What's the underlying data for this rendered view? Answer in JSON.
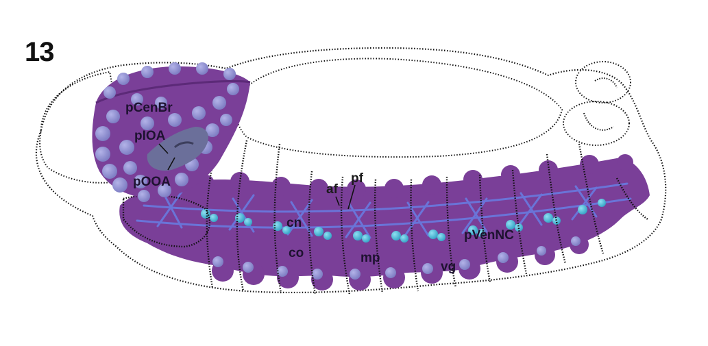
{
  "figure": {
    "number": "13"
  },
  "labels": {
    "pCenBr": "pCenBr",
    "pIOA": "pIOA",
    "pOOA": "pOOA",
    "af": "af",
    "pf": "pf",
    "cn": "cn",
    "co": "co",
    "mp": "mp",
    "vg": "vg",
    "pVenNC": "pVenNC"
  },
  "colors": {
    "background": "#ffffff",
    "embryo_outline": "#111111",
    "nervous_tissue": "#7a3f98",
    "nervous_tissue_dark": "#5c2a78",
    "nuclei_spheres": "#8f8fd0",
    "commissures": "#6a74d8",
    "neuromere_clusters": "#4cb8d6",
    "optic_anlage": "#6b6f9a"
  }
}
